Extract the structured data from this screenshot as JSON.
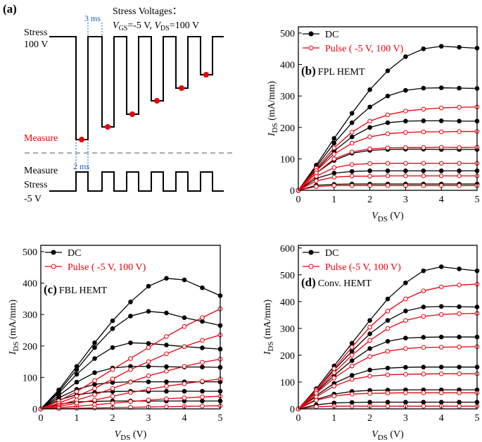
{
  "diagram": {
    "label": "(a)",
    "stress_voltages": "Stress Voltages：",
    "condition": [
      "V",
      "GS",
      "=-5 V, ",
      "V",
      "DS",
      "=100 V"
    ],
    "top_interval": "3 ms",
    "bottom_interval": "2 ms",
    "stress_high": [
      "Stress",
      "100 V"
    ],
    "measure_top": "Measure",
    "measure_bottom": "Measure",
    "stress_low": [
      "Stress",
      "-5 V"
    ]
  },
  "chart_data": [
    {
      "type": "line",
      "label": "(b)",
      "annotation": "FPL HEMT",
      "xlabel": [
        "V",
        "DS",
        " (V)"
      ],
      "ylabel": [
        "I",
        "DS",
        " (mA/mm)"
      ],
      "xlim": [
        0,
        5
      ],
      "ylim": [
        0,
        520
      ],
      "xticks": [
        0,
        1,
        2,
        3,
        4,
        5
      ],
      "yticks": [
        0,
        100,
        200,
        300,
        400,
        500
      ],
      "x": [
        0,
        0.5,
        1,
        1.5,
        2,
        2.5,
        3,
        3.5,
        4,
        4.5,
        5
      ],
      "series": [
        {
          "name": "DC",
          "color": "#000000",
          "marker": "filled",
          "values": [
            0,
            80,
            165,
            245,
            320,
            380,
            425,
            450,
            458,
            455,
            452
          ]
        },
        {
          "color": "#000000",
          "marker": "filled",
          "values": [
            0,
            75,
            150,
            215,
            265,
            300,
            318,
            325,
            326,
            325,
            324
          ]
        },
        {
          "color": "#000000",
          "marker": "filled",
          "values": [
            0,
            65,
            125,
            170,
            200,
            215,
            220,
            221,
            221,
            220,
            220
          ]
        },
        {
          "color": "#000000",
          "marker": "filled",
          "values": [
            0,
            55,
            95,
            118,
            127,
            130,
            131,
            131,
            130,
            130,
            130
          ]
        },
        {
          "color": "#000000",
          "marker": "filled",
          "values": [
            0,
            38,
            55,
            60,
            62,
            62,
            62,
            62,
            62,
            62,
            62
          ]
        },
        {
          "color": "#000000",
          "marker": "filled",
          "values": [
            0,
            16,
            19,
            20,
            20,
            20,
            20,
            20,
            20,
            20,
            20
          ]
        },
        {
          "name": "Pulse ( -5 V, 100 V)",
          "color": "#e8000b",
          "marker": "open",
          "values": [
            0,
            70,
            135,
            185,
            220,
            240,
            252,
            258,
            262,
            264,
            265
          ]
        },
        {
          "color": "#e8000b",
          "marker": "open",
          "values": [
            0,
            62,
            115,
            150,
            170,
            180,
            184,
            186,
            186,
            187,
            187
          ]
        },
        {
          "color": "#e8000b",
          "marker": "open",
          "values": [
            0,
            55,
            100,
            122,
            132,
            135,
            136,
            136,
            137,
            136,
            137
          ]
        },
        {
          "color": "#e8000b",
          "marker": "open",
          "values": [
            0,
            45,
            72,
            82,
            85,
            86,
            86,
            86,
            86,
            86,
            86
          ]
        },
        {
          "color": "#e8000b",
          "marker": "open",
          "values": [
            0,
            30,
            42,
            45,
            45,
            46,
            46,
            46,
            46,
            46,
            46
          ]
        },
        {
          "color": "#e8000b",
          "marker": "open",
          "values": [
            0,
            12,
            15,
            15,
            15,
            15,
            15,
            15,
            15,
            15,
            15
          ]
        }
      ]
    },
    {
      "type": "line",
      "label": "(c)",
      "annotation": "FBL HEMT",
      "xlabel": [
        "V",
        "DS",
        " (V)"
      ],
      "ylabel": [
        "I",
        "DS",
        " (mA/mm)"
      ],
      "xlim": [
        0,
        5
      ],
      "ylim": [
        0,
        520
      ],
      "xticks": [
        0,
        1,
        2,
        3,
        4,
        5
      ],
      "yticks": [
        0,
        100,
        200,
        300,
        400,
        500
      ],
      "x": [
        0,
        0.5,
        1,
        1.5,
        2,
        2.5,
        3,
        3.5,
        4,
        4.5,
        5
      ],
      "series": [
        {
          "name": "DC",
          "color": "#000000",
          "marker": "filled",
          "values": [
            0,
            60,
            135,
            210,
            280,
            340,
            390,
            415,
            410,
            385,
            360
          ]
        },
        {
          "color": "#000000",
          "marker": "filled",
          "values": [
            0,
            55,
            125,
            195,
            255,
            295,
            310,
            305,
            290,
            278,
            265
          ]
        },
        {
          "color": "#000000",
          "marker": "filled",
          "values": [
            0,
            50,
            110,
            160,
            195,
            210,
            208,
            203,
            198,
            194,
            190
          ]
        },
        {
          "color": "#000000",
          "marker": "filled",
          "values": [
            0,
            42,
            85,
            115,
            130,
            135,
            135,
            134,
            133,
            133,
            132
          ]
        },
        {
          "color": "#000000",
          "marker": "filled",
          "values": [
            0,
            35,
            62,
            78,
            84,
            86,
            86,
            86,
            86,
            86,
            86
          ]
        },
        {
          "color": "#000000",
          "marker": "filled",
          "values": [
            0,
            28,
            45,
            52,
            55,
            56,
            56,
            56,
            56,
            56,
            56
          ]
        },
        {
          "color": "#000000",
          "marker": "filled",
          "values": [
            0,
            15,
            22,
            24,
            25,
            25,
            25,
            25,
            25,
            25,
            25
          ]
        },
        {
          "name": "Pulse ( -5 V, 100 V)",
          "color": "#e8000b",
          "marker": "open",
          "values": [
            0,
            25,
            55,
            90,
            125,
            160,
            195,
            230,
            262,
            290,
            318
          ]
        },
        {
          "color": "#e8000b",
          "marker": "open",
          "values": [
            0,
            18,
            40,
            65,
            95,
            125,
            150,
            175,
            198,
            218,
            235
          ]
        },
        {
          "color": "#e8000b",
          "marker": "open",
          "values": [
            0,
            12,
            28,
            45,
            65,
            85,
            105,
            120,
            135,
            148,
            158
          ]
        },
        {
          "color": "#e8000b",
          "marker": "open",
          "values": [
            0,
            8,
            18,
            28,
            40,
            52,
            62,
            72,
            80,
            88,
            95
          ]
        },
        {
          "color": "#e8000b",
          "marker": "open",
          "values": [
            0,
            4,
            8,
            13,
            18,
            23,
            28,
            32,
            35,
            38,
            40
          ]
        },
        {
          "color": "#e8000b",
          "marker": "open",
          "values": [
            0,
            1,
            2,
            3,
            4,
            5,
            6,
            7,
            8,
            9,
            10
          ]
        }
      ]
    },
    {
      "type": "line",
      "label": "(d)",
      "annotation": "Conv. HEMT",
      "xlabel": [
        "V",
        "DS",
        " (V)"
      ],
      "ylabel": [
        "I",
        "DS",
        " (mA/mm)"
      ],
      "xlim": [
        0,
        5
      ],
      "ylim": [
        0,
        610
      ],
      "xticks": [
        0,
        1,
        2,
        3,
        4,
        5
      ],
      "yticks": [
        0,
        100,
        200,
        300,
        400,
        500,
        600
      ],
      "x": [
        0,
        0.5,
        1,
        1.5,
        2,
        2.5,
        3,
        3.5,
        4,
        4.5,
        5
      ],
      "series": [
        {
          "name": "DC",
          "color": "#000000",
          "marker": "filled",
          "values": [
            0,
            75,
            160,
            245,
            330,
            410,
            470,
            515,
            530,
            522,
            515
          ]
        },
        {
          "color": "#000000",
          "marker": "filled",
          "values": [
            0,
            70,
            145,
            215,
            280,
            330,
            365,
            380,
            382,
            381,
            380
          ]
        },
        {
          "color": "#000000",
          "marker": "filled",
          "values": [
            0,
            62,
            125,
            180,
            225,
            252,
            264,
            267,
            268,
            268,
            268
          ]
        },
        {
          "color": "#000000",
          "marker": "filled",
          "values": [
            0,
            50,
            95,
            125,
            145,
            152,
            155,
            156,
            156,
            156,
            156
          ]
        },
        {
          "color": "#000000",
          "marker": "filled",
          "values": [
            0,
            35,
            55,
            65,
            69,
            70,
            71,
            71,
            71,
            71,
            71
          ]
        },
        {
          "color": "#000000",
          "marker": "filled",
          "values": [
            0,
            15,
            22,
            24,
            25,
            25,
            25,
            25,
            25,
            25,
            25
          ]
        },
        {
          "name": "Pulse (-5 V, 100 V)",
          "color": "#e8000b",
          "marker": "open",
          "values": [
            0,
            70,
            150,
            230,
            305,
            365,
            410,
            440,
            455,
            462,
            465
          ]
        },
        {
          "color": "#e8000b",
          "marker": "open",
          "values": [
            0,
            65,
            135,
            200,
            255,
            300,
            330,
            345,
            352,
            355,
            356
          ]
        },
        {
          "color": "#e8000b",
          "marker": "open",
          "values": [
            0,
            58,
            115,
            160,
            195,
            215,
            225,
            229,
            230,
            231,
            232
          ]
        },
        {
          "color": "#e8000b",
          "marker": "open",
          "values": [
            0,
            45,
            85,
            110,
            122,
            127,
            129,
            130,
            131,
            131,
            131
          ]
        },
        {
          "color": "#e8000b",
          "marker": "open",
          "values": [
            0,
            32,
            48,
            55,
            58,
            59,
            60,
            60,
            60,
            60,
            60
          ]
        },
        {
          "color": "#e8000b",
          "marker": "open",
          "values": [
            0,
            8,
            10,
            10,
            10,
            10,
            10,
            10,
            10,
            10,
            10
          ]
        }
      ]
    }
  ]
}
